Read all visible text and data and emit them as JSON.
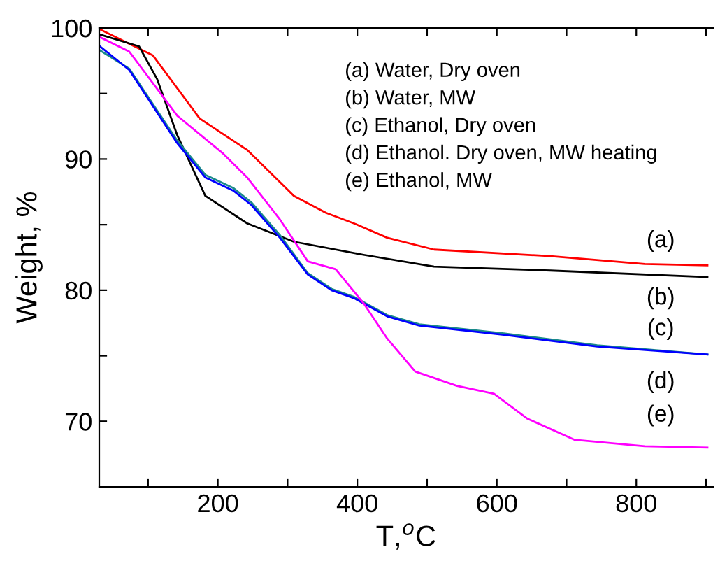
{
  "chart_data": {
    "type": "line",
    "xlabel": "T,$^{o}$C",
    "ylabel": "Weight, %",
    "xlim": [
      30,
      910
    ],
    "ylim": [
      65,
      100
    ],
    "xticks": [
      {
        "value": 100,
        "label": null
      },
      200,
      {
        "value": 300,
        "label": null
      },
      400,
      {
        "value": 500,
        "label": null
      },
      600,
      {
        "value": 700,
        "label": null
      },
      800,
      {
        "value": 900,
        "label": null
      }
    ],
    "yticks": [
      70,
      {
        "value": 75,
        "label": null
      },
      80,
      {
        "value": 85,
        "label": null
      },
      90,
      {
        "value": 95,
        "label": null
      },
      100
    ],
    "grid": false,
    "legend": false,
    "marker": "none",
    "line_style": "solid",
    "annotations": [
      "(a) Water, Dry oven",
      "(b) Water, MW",
      "(c) Ethanol, Dry oven",
      "(d) Ethanol. Dry oven, MW heating",
      "(e) Ethanol, MW"
    ],
    "series": [
      {
        "name": "(a)",
        "color": "#ff0000",
        "x": [
          31,
          107,
          174,
          242,
          309,
          355,
          395,
          443,
          510,
          677,
          812,
          902
        ],
        "values": [
          99.9,
          97.9,
          93.1,
          90.7,
          87.2,
          85.9,
          85.1,
          84.0,
          83.1,
          82.6,
          82.0,
          81.9
        ]
      },
      {
        "name": "(b)",
        "color": "#000000",
        "x": [
          31,
          87,
          113,
          142,
          182,
          242,
          309,
          409,
          510,
          677,
          902
        ],
        "values": [
          99.5,
          98.6,
          96.1,
          91.8,
          87.2,
          85.1,
          83.7,
          82.7,
          81.8,
          81.5,
          81.0
        ]
      },
      {
        "name": "(c)",
        "color": "#1a8a8a",
        "x": [
          31,
          73,
          142,
          182,
          222,
          248,
          289,
          329,
          363,
          395,
          443,
          489,
          610,
          744,
          902
        ],
        "values": [
          98.3,
          96.9,
          91.4,
          88.8,
          87.8,
          86.7,
          84.2,
          81.3,
          80.1,
          79.5,
          78.1,
          77.4,
          76.7,
          75.8,
          75.1
        ]
      },
      {
        "name": "(d)",
        "color": "#0000ff",
        "x": [
          31,
          73,
          142,
          182,
          222,
          248,
          289,
          329,
          363,
          395,
          443,
          489,
          610,
          744,
          902
        ],
        "values": [
          98.6,
          96.8,
          91.2,
          88.6,
          87.6,
          86.5,
          84.0,
          81.2,
          80.0,
          79.4,
          78.0,
          77.3,
          76.6,
          75.7,
          75.1
        ]
      },
      {
        "name": "(e)",
        "color": "#ff00ff",
        "x": [
          31,
          73,
          142,
          208,
          242,
          289,
          329,
          369,
          409,
          443,
          483,
          543,
          596,
          644,
          711,
          812,
          902
        ],
        "values": [
          99.3,
          98.2,
          93.3,
          90.4,
          88.6,
          85.4,
          82.2,
          81.6,
          79.0,
          76.3,
          73.8,
          72.7,
          72.1,
          70.2,
          68.6,
          68.1,
          68.0
        ]
      }
    ]
  }
}
